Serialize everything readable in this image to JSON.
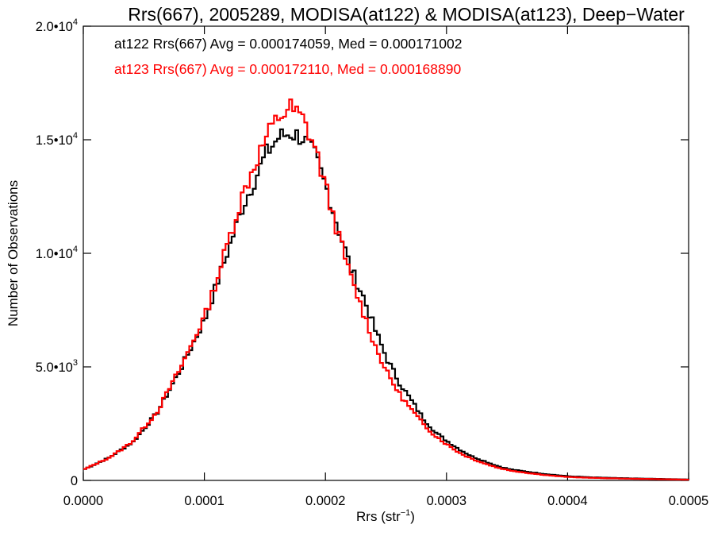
{
  "chart_data": {
    "type": "line",
    "title": "Rrs(667), 2005289, MODISA(at122) & MODISA(at123), Deep−Water",
    "xlabel": "Rrs (str",
    "xlabel_sup": "−1",
    "xlabel_close": ")",
    "ylabel": "Number of Observations",
    "xlim": [
      0,
      0.0005
    ],
    "ylim": [
      0,
      20000
    ],
    "xticks": [
      {
        "value": 0.0,
        "label": "0.0000"
      },
      {
        "value": 0.0001,
        "label": "0.0001"
      },
      {
        "value": 0.0002,
        "label": "0.0002"
      },
      {
        "value": 0.0003,
        "label": "0.0003"
      },
      {
        "value": 0.0004,
        "label": "0.0004"
      },
      {
        "value": 0.0005,
        "label": "0.0005"
      }
    ],
    "yticks": [
      {
        "value": 0,
        "mant": "0",
        "exp": ""
      },
      {
        "value": 5000,
        "mant": "5.0•10",
        "exp": "3"
      },
      {
        "value": 10000,
        "mant": "1.0•10",
        "exp": "4"
      },
      {
        "value": 15000,
        "mant": "1.5•10",
        "exp": "4"
      },
      {
        "value": 20000,
        "mant": "2.0•10",
        "exp": "4"
      }
    ],
    "grid": false,
    "series": [
      {
        "name": "at122",
        "color": "#000000",
        "annotation": "at122 Rrs(667) Avg = 0.000174059, Med = 0.000171002",
        "x": [
          0.0,
          1e-05,
          2e-05,
          3e-05,
          4e-05,
          5e-05,
          6e-05,
          7e-05,
          8e-05,
          9e-05,
          0.0001,
          0.00011,
          0.00012,
          0.00013,
          0.00014,
          0.00015,
          0.00016,
          0.00017,
          0.00018,
          0.00019,
          0.0002,
          0.00021,
          0.00022,
          0.00023,
          0.00024,
          0.00025,
          0.00026,
          0.00027,
          0.00028,
          0.00029,
          0.0003,
          0.00031,
          0.00032,
          0.00033,
          0.00034,
          0.00035,
          0.00036,
          0.00037,
          0.00038,
          0.00039,
          0.0004,
          0.00042,
          0.00045,
          0.00048,
          0.0005
        ],
        "y": [
          500,
          750,
          1000,
          1350,
          1700,
          2350,
          3000,
          4000,
          5000,
          6100,
          7200,
          8800,
          10400,
          12000,
          13200,
          14400,
          15100,
          15300,
          15100,
          14300,
          12800,
          11000,
          9300,
          8100,
          6600,
          5300,
          4300,
          3500,
          2700,
          2100,
          1700,
          1350,
          1050,
          850,
          650,
          500,
          420,
          350,
          280,
          230,
          180,
          130,
          90,
          60,
          40
        ]
      },
      {
        "name": "at123",
        "color": "#ff0000",
        "annotation": "at123 Rrs(667) Avg = 0.000172110, Med = 0.000168890",
        "x": [
          0.0,
          1e-05,
          2e-05,
          3e-05,
          4e-05,
          5e-05,
          6e-05,
          7e-05,
          8e-05,
          9e-05,
          0.0001,
          0.00011,
          0.00012,
          0.00013,
          0.00014,
          0.00015,
          0.00016,
          0.00017,
          0.00018,
          0.00019,
          0.0002,
          0.00021,
          0.00022,
          0.00023,
          0.00024,
          0.00025,
          0.00026,
          0.00027,
          0.00028,
          0.00029,
          0.0003,
          0.00031,
          0.00032,
          0.00033,
          0.00034,
          0.00035,
          0.00036,
          0.00037,
          0.00038,
          0.00039,
          0.0004,
          0.00042,
          0.00045,
          0.00048,
          0.0005
        ],
        "y": [
          500,
          750,
          1000,
          1350,
          1750,
          2400,
          3050,
          4050,
          5050,
          6200,
          7350,
          9000,
          10800,
          12500,
          13900,
          15100,
          16000,
          16400,
          15900,
          14700,
          12700,
          10700,
          8900,
          7400,
          5900,
          4700,
          3800,
          3100,
          2450,
          1950,
          1550,
          1200,
          950,
          750,
          580,
          450,
          370,
          300,
          240,
          190,
          150,
          110,
          75,
          50,
          30
        ]
      }
    ]
  }
}
